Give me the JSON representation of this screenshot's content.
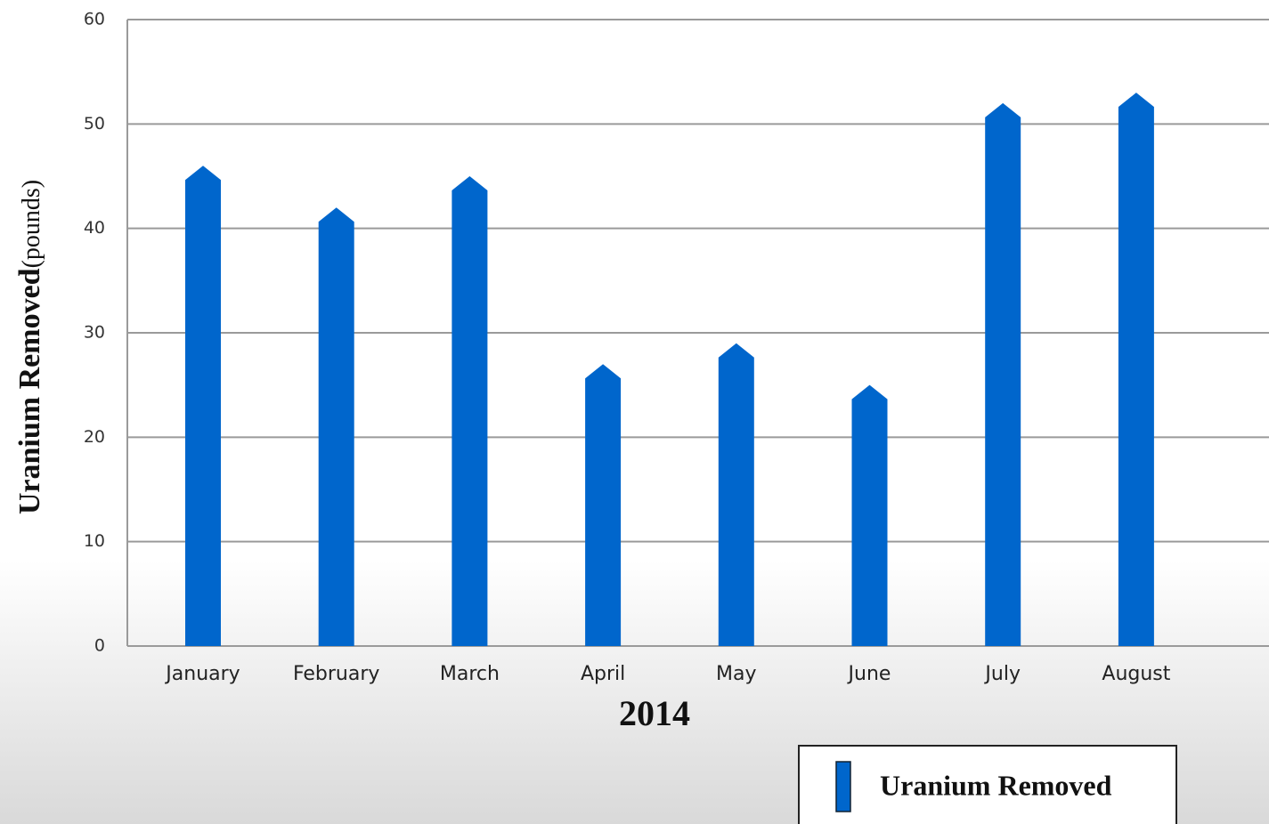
{
  "chart_data": {
    "type": "bar",
    "ylabel": "Uranium Removed",
    "ylabel_unit": "(pounds)",
    "xlabel": "2014",
    "categories": [
      "January",
      "February",
      "March",
      "April",
      "May",
      "June",
      "July",
      "August"
    ],
    "series": [
      {
        "name": "Uranium Removed",
        "color": "#0066cc",
        "values": [
          46,
          42,
          45,
          27,
          29,
          25,
          52,
          53
        ]
      }
    ],
    "ylim": [
      0,
      60
    ],
    "yticks": [
      0,
      10,
      20,
      30,
      40,
      50,
      60
    ],
    "grid": true,
    "legend": "bottom-right"
  }
}
